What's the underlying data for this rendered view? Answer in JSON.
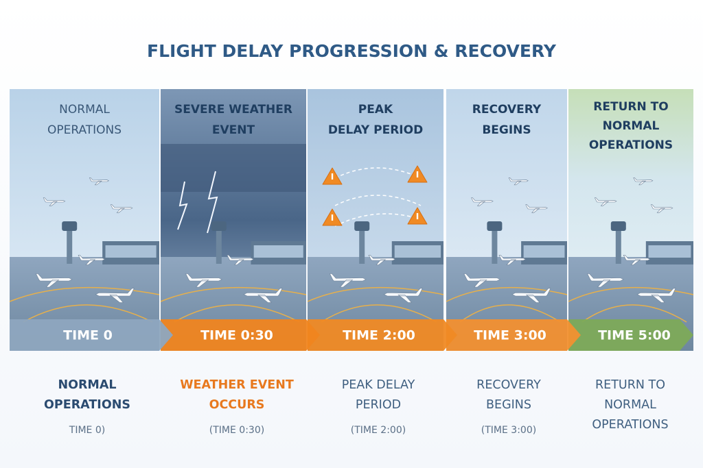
{
  "title": "FLIGHT DELAY PROGRESSION & RECOVERY",
  "stages": [
    {
      "panel_title": [
        "NORMAL",
        "OPERATIONS"
      ],
      "time": "TIME 0",
      "caption": [
        "NORMAL",
        "OPERATIONS"
      ],
      "caption_sub": "TIME 0)"
    },
    {
      "panel_title": [
        "SEVERE WEATHER",
        "EVENT"
      ],
      "time": "TIME 0:30",
      "caption": [
        "WEATHER EVENT",
        "OCCURS"
      ],
      "caption_sub": "(TIME 0:30)"
    },
    {
      "panel_title": [
        "PEAK",
        "DELAY PERIOD"
      ],
      "time": "TIME 2:00",
      "caption": [
        "PEAK DELAY",
        "PERIOD"
      ],
      "caption_sub": "(TIME 2:00)"
    },
    {
      "panel_title": [
        "RECOVERY",
        "BEGINS"
      ],
      "time": "TIME 3:00",
      "caption": [
        "RECOVERY",
        "BEGINS"
      ],
      "caption_sub": "(TIME 3:00)"
    },
    {
      "panel_title": [
        "RETURN TO",
        "NORMAL",
        "OPERATIONS"
      ],
      "time": "TIME 5:00",
      "caption": [
        "RETURN TO",
        "NORMAL",
        "OPERATIONS"
      ]
    }
  ]
}
